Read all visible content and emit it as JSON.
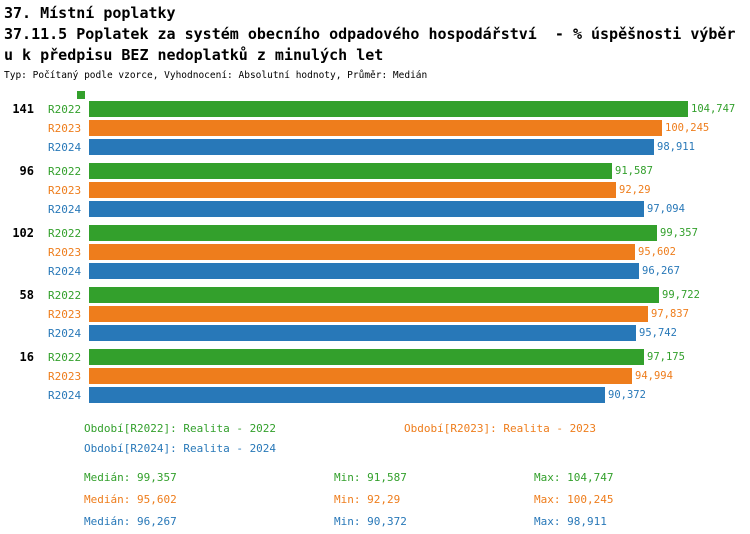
{
  "header": {
    "line1": "37. Místní poplatky",
    "line2": "37.11.5 Poplatek za systém obecního odpadového hospodářství  - % úspěšnosti výběr",
    "line3": "u k předpisu BEZ nedoplatků z minulých let",
    "meta": "Typ: Počítaný podle vzorce, Vyhodnocení: Absolutní hodnoty, Průměr: Medián"
  },
  "colors": {
    "R2022": "#33a02c",
    "R2023": "#ee7d1c",
    "R2024": "#2878b8"
  },
  "chart_data": {
    "type": "bar",
    "orientation": "horizontal",
    "title": "37.11.5 Poplatek za systém obecního odpadového hospodářství - % úspěšnosti výběru k předpisu BEZ nedoplatků z minulých let",
    "categories": [
      "141",
      "96",
      "102",
      "58",
      "16"
    ],
    "series": [
      {
        "name": "R2022",
        "values": [
          104.747,
          91.587,
          99.357,
          99.722,
          97.175
        ],
        "labels": [
          "104,747",
          "91,587",
          "99,357",
          "99,722",
          "97,175"
        ]
      },
      {
        "name": "R2023",
        "values": [
          100.245,
          92.29,
          95.602,
          97.837,
          94.994
        ],
        "labels": [
          "100,245",
          "92,29",
          "95,602",
          "97,837",
          "94,994"
        ]
      },
      {
        "name": "R2024",
        "values": [
          98.911,
          97.094,
          96.267,
          95.742,
          90.372
        ],
        "labels": [
          "98,911",
          "97,094",
          "96,267",
          "95,742",
          "90,372"
        ]
      }
    ],
    "medians": [
      {
        "series": "R2022",
        "value": 99.357
      },
      {
        "series": "R2023",
        "value": 95.602
      },
      {
        "series": "R2024",
        "value": 96.267
      }
    ],
    "xlim": [
      0,
      105
    ],
    "grid": false,
    "legend_position": "bottom"
  },
  "legend": {
    "items": [
      {
        "series": "R2022",
        "text": "Období[R2022]: Realita - 2022"
      },
      {
        "series": "R2023",
        "text": "Období[R2023]: Realita - 2023"
      },
      {
        "series": "R2024",
        "text": "Období[R2024]: Realita - 2024"
      }
    ]
  },
  "stats": {
    "rows": [
      {
        "series": "R2022",
        "median": "Medián: 99,357",
        "min": "Min: 91,587",
        "max": "Max: 104,747"
      },
      {
        "series": "R2023",
        "median": "Medián: 95,602",
        "min": "Min: 92,29",
        "max": "Max: 100,245"
      },
      {
        "series": "R2024",
        "median": "Medián: 96,267",
        "min": "Min: 90,372",
        "max": "Max: 98,911"
      }
    ]
  }
}
